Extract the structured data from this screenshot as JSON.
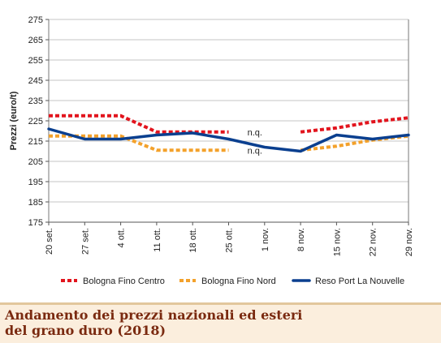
{
  "chart_data": {
    "type": "line",
    "ylabel": "Prezzi (euro/t)",
    "ylim": [
      175,
      275
    ],
    "yticks": [
      175,
      185,
      195,
      205,
      215,
      225,
      235,
      245,
      255,
      265,
      275
    ],
    "categories": [
      "20 set.",
      "27 set.",
      "4 ott.",
      "11 ott.",
      "18 ott.",
      "25 ott.",
      "1 nov.",
      "8 nov.",
      "15 nov.",
      "22 nov.",
      "29 nov."
    ],
    "grid": "horizontal",
    "legend_position": "bottom",
    "series": [
      {
        "name": "Bologna Fino Centro",
        "color": "#e2141d",
        "style": "dotted",
        "values": [
          227.5,
          227.5,
          227.5,
          219.5,
          219.5,
          219.5,
          null,
          219.5,
          221.5,
          224.5,
          226.5
        ]
      },
      {
        "name": "Bologna Fino Nord",
        "color": "#f3a12b",
        "style": "dotted",
        "values": [
          217.5,
          217.5,
          217.5,
          210.5,
          210.5,
          210.5,
          null,
          210.5,
          212.5,
          215.5,
          217.5
        ]
      },
      {
        "name": "Reso Port La Nouvelle",
        "color": "#0a3f8f",
        "style": "solid",
        "values": [
          221,
          216,
          216,
          218,
          219,
          216,
          212,
          210,
          218,
          216,
          218
        ]
      }
    ],
    "annotations": [
      {
        "text": "n.q.",
        "series": "Bologna Fino Centro",
        "category": "1 nov."
      },
      {
        "text": "n.q.",
        "series": "Bologna Fino Nord",
        "category": "1 nov."
      }
    ]
  },
  "caption": {
    "title": "Andamento dei prezzi nazionali ed esteri\ndel grano duro (2018)"
  }
}
